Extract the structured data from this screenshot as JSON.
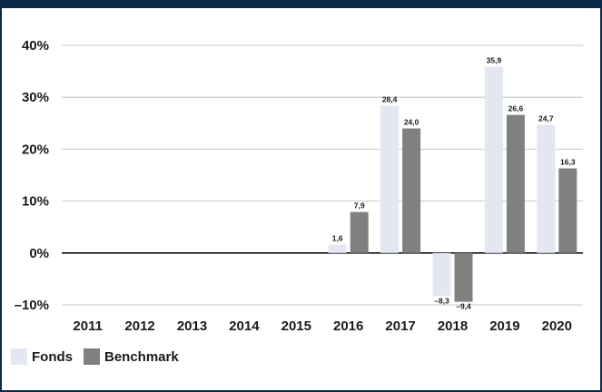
{
  "colors": {
    "fonds": "#e3e7f1",
    "benchmark": "#808080",
    "border": "#0b2a4a",
    "zero_line": "#111111",
    "grid": "#b8b8b8"
  },
  "chart_data": {
    "type": "bar",
    "categories": [
      "2011",
      "2012",
      "2013",
      "2014",
      "2015",
      "2016",
      "2017",
      "2018",
      "2019",
      "2020"
    ],
    "series": [
      {
        "name": "Fonds",
        "values": [
          null,
          null,
          null,
          null,
          null,
          1.6,
          28.4,
          -8.3,
          35.9,
          24.7
        ],
        "labels": [
          "",
          "",
          "",
          "",
          "",
          "1,6",
          "28,4",
          "–8,3",
          "35,9",
          "24,7"
        ]
      },
      {
        "name": "Benchmark",
        "values": [
          null,
          null,
          null,
          null,
          null,
          7.9,
          24.0,
          -9.4,
          26.6,
          16.3
        ],
        "labels": [
          "",
          "",
          "",
          "",
          "",
          "7,9",
          "24,0",
          "–9,4",
          "26,6",
          "16,3"
        ]
      }
    ],
    "ylim": [
      -10,
      40
    ],
    "yticks": [
      40,
      30,
      20,
      10,
      0,
      -10
    ],
    "ytick_labels": [
      "40%",
      "30%",
      "20%",
      "10%",
      "0%",
      "–10%"
    ],
    "grid": true,
    "legend_position": "bottom-left"
  },
  "legend": [
    {
      "label": "Fonds"
    },
    {
      "label": "Benchmark"
    }
  ]
}
